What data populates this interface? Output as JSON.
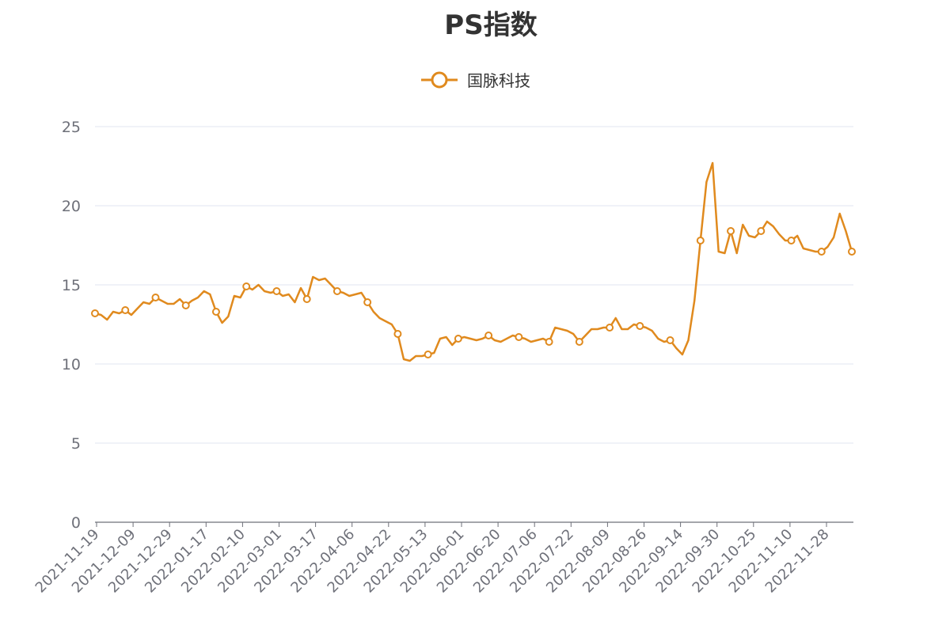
{
  "chart_data": {
    "type": "line",
    "title": "PS指数",
    "legend_position": "top-center",
    "grid": true,
    "colors": {
      "series": "#E08A1E",
      "grid": "#E0E6F1",
      "axis": "#6E7079"
    },
    "ylim": [
      0,
      25
    ],
    "yticks": [
      "0",
      "5",
      "10",
      "15",
      "20",
      "25"
    ],
    "x_ticks": [
      "2021-11-19",
      "2021-12-09",
      "2021-12-29",
      "2022-01-17",
      "2022-02-10",
      "2022-03-01",
      "2022-03-17",
      "2022-04-06",
      "2022-04-22",
      "2022-05-13",
      "2022-06-01",
      "2022-06-20",
      "2022-07-06",
      "2022-07-22",
      "2022-08-09",
      "2022-08-26",
      "2022-09-14",
      "2022-09-30",
      "2022-10-25",
      "2022-11-10",
      "2022-11-28"
    ],
    "series": [
      {
        "name": "国脉科技",
        "values": [
          13.2,
          13.1,
          12.8,
          13.3,
          13.2,
          13.4,
          13.1,
          13.5,
          13.9,
          13.8,
          14.2,
          14.0,
          13.8,
          13.8,
          14.1,
          13.7,
          14.0,
          14.2,
          14.6,
          14.4,
          13.3,
          12.6,
          13.0,
          14.3,
          14.2,
          14.9,
          14.7,
          15.0,
          14.6,
          14.5,
          14.6,
          14.3,
          14.4,
          13.9,
          14.8,
          14.1,
          15.5,
          15.3,
          15.4,
          15.0,
          14.6,
          14.5,
          14.3,
          14.4,
          14.5,
          13.9,
          13.3,
          12.9,
          12.7,
          12.5,
          11.9,
          10.3,
          10.2,
          10.5,
          10.5,
          10.6,
          10.7,
          11.6,
          11.7,
          11.2,
          11.6,
          11.7,
          11.6,
          11.5,
          11.6,
          11.8,
          11.5,
          11.4,
          11.6,
          11.8,
          11.7,
          11.6,
          11.4,
          11.5,
          11.6,
          11.4,
          12.3,
          12.2,
          12.1,
          11.9,
          11.4,
          11.8,
          12.2,
          12.2,
          12.3,
          12.3,
          12.9,
          12.2,
          12.2,
          12.5,
          12.4,
          12.3,
          12.1,
          11.6,
          11.4,
          11.5,
          11.0,
          10.6,
          11.5,
          14.0,
          17.8,
          21.5,
          22.7,
          17.1,
          17.0,
          18.4,
          17.0,
          18.8,
          18.1,
          18.0,
          18.4,
          19.0,
          18.7,
          18.2,
          17.8,
          17.8,
          18.1,
          17.3,
          17.2,
          17.1,
          17.1,
          17.4,
          18.0,
          19.5,
          18.4,
          17.1
        ]
      }
    ]
  }
}
